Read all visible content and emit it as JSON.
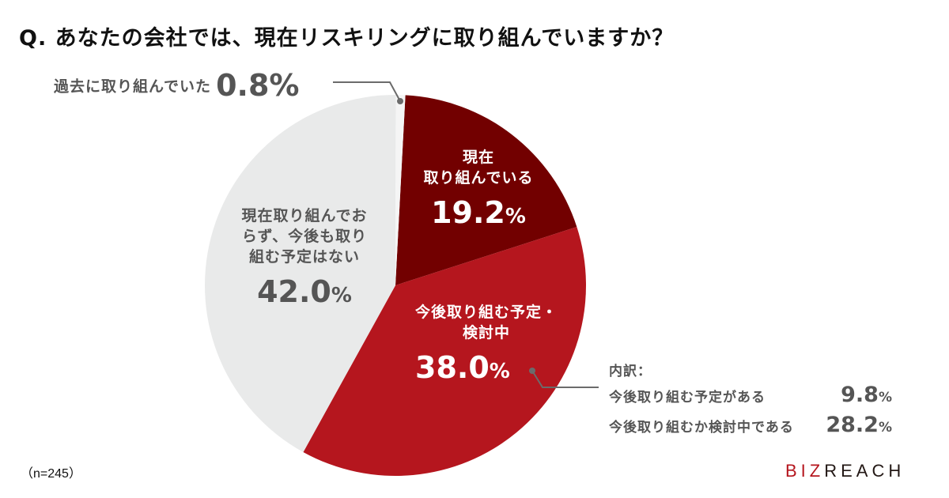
{
  "title": "Q. あなたの会社では、現在リスキリングに取り組んでいますか？",
  "colors": {
    "current": "#720000",
    "planned": "#b5161e",
    "none": "#e9eaea",
    "past": "#f5f5f5",
    "text_grey": "#555555",
    "leader": "#6b6b6b"
  },
  "slices": {
    "current": {
      "label_line1": "現在",
      "label_line2": "取り組んでいる",
      "value": "19.2",
      "unit": "%"
    },
    "planned": {
      "label_line1": "今後取り組む予定・",
      "label_line2": "検討中",
      "value": "38.0",
      "unit": "%"
    },
    "none": {
      "label_line1": "現在取り組んでお",
      "label_line2": "らず、今後も取り",
      "label_line3": "組む予定はない",
      "value": "42.0",
      "unit": "%"
    },
    "past": {
      "label": "過去に取り組んでいた",
      "value": "0.8%"
    }
  },
  "breakdown": {
    "header": "内訳：",
    "items": [
      {
        "label": "今後取り組む予定がある",
        "value": "9.8",
        "unit": "%"
      },
      {
        "label": "今後取り組むか検討中である",
        "value": "28.2",
        "unit": "%"
      }
    ]
  },
  "footnote": "（n=245）",
  "logo": {
    "part1": "BIZ",
    "part2": "REACH"
  },
  "chart_data": {
    "type": "pie",
    "title": "Q. あなたの会社では、現在リスキリングに取り組んでいますか？",
    "categories": [
      "現在取り組んでいる",
      "今後取り組む予定・検討中",
      "現在取り組んでおらず、今後も取り組む予定はない",
      "過去に取り組んでいた"
    ],
    "values": [
      19.2,
      38.0,
      42.0,
      0.8
    ],
    "colors": [
      "#720000",
      "#b5161e",
      "#e9eaea",
      "#f5f5f5"
    ],
    "breakdown": {
      "parent": "今後取り組む予定・検討中",
      "categories": [
        "今後取り組む予定がある",
        "今後取り組むか検討中である"
      ],
      "values": [
        9.8,
        28.2
      ]
    },
    "n": 245,
    "start_angle_deg": 3,
    "direction": "clockwise"
  }
}
